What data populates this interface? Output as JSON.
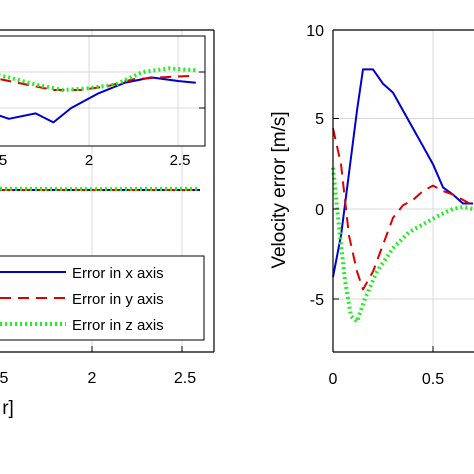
{
  "colors": {
    "x": "#0000cc",
    "y": "#dd0000",
    "z": "#22ee22",
    "grid": "#d8d8d8",
    "axis": "#000000"
  },
  "chart_data": [
    {
      "type": "line",
      "panel": "left (cropped)",
      "xlabel_visible_fragment": "r]",
      "x_ticks": [
        "5",
        "2",
        "2.5"
      ],
      "grid": true,
      "legend_placement": "bottom-right",
      "series": [
        {
          "name": "Error in x axis",
          "style": "solid"
        },
        {
          "name": "Error in y axis",
          "style": "dashed"
        },
        {
          "name": "Error in z axis",
          "style": "dotted"
        }
      ],
      "main_lines": {
        "x": [
          [
            1.1,
            0.0
          ],
          [
            2.6,
            0.0
          ]
        ],
        "y": [
          [
            1.1,
            0.0
          ],
          [
            2.6,
            0.0
          ]
        ],
        "z": [
          [
            1.1,
            0.02
          ],
          [
            1.5,
            0.03
          ],
          [
            2.0,
            0.02
          ],
          [
            2.6,
            0.03
          ]
        ]
      },
      "inset": {
        "x_ticks": [
          "5",
          "2",
          "2.5"
        ],
        "grid": true,
        "series": {
          "x": [
            [
              1.1,
              -0.1
            ],
            [
              1.25,
              -0.2
            ],
            [
              1.4,
              -0.55
            ],
            [
              1.55,
              -0.8
            ],
            [
              1.7,
              -0.65
            ],
            [
              1.8,
              -0.9
            ],
            [
              1.9,
              -0.5
            ],
            [
              2.05,
              -0.1
            ],
            [
              2.2,
              0.2
            ],
            [
              2.35,
              0.35
            ],
            [
              2.5,
              0.25
            ],
            [
              2.6,
              0.2
            ]
          ],
          "y": [
            [
              1.1,
              0.5
            ],
            [
              1.3,
              0.4
            ],
            [
              1.5,
              0.3
            ],
            [
              1.65,
              0.15
            ],
            [
              1.8,
              0.0
            ],
            [
              1.95,
              0.0
            ],
            [
              2.1,
              0.1
            ],
            [
              2.25,
              0.3
            ],
            [
              2.4,
              0.35
            ],
            [
              2.6,
              0.4
            ]
          ],
          "z": [
            [
              1.1,
              0.6
            ],
            [
              1.25,
              0.55
            ],
            [
              1.4,
              0.5
            ],
            [
              1.55,
              0.35
            ],
            [
              1.7,
              0.15
            ],
            [
              1.85,
              0.0
            ],
            [
              2.0,
              0.05
            ],
            [
              2.15,
              0.15
            ],
            [
              2.3,
              0.5
            ],
            [
              2.45,
              0.6
            ],
            [
              2.6,
              0.55
            ]
          ]
        }
      }
    },
    {
      "type": "line",
      "panel": "right",
      "xlabel": "",
      "ylabel": "Velocity error [m/s]",
      "xlim": [
        0,
        1.1
      ],
      "ylim": [
        -8,
        10
      ],
      "x_ticks": [
        "0",
        "0.5"
      ],
      "y_ticks": [
        "10",
        "5",
        "0",
        "-5"
      ],
      "grid": true,
      "series": [
        {
          "name": "Error in x axis",
          "style": "solid",
          "points": [
            [
              0,
              -3.8
            ],
            [
              0.04,
              -1.5
            ],
            [
              0.08,
              2.0
            ],
            [
              0.12,
              5.5
            ],
            [
              0.15,
              7.8
            ],
            [
              0.2,
              7.8
            ],
            [
              0.25,
              7.0
            ],
            [
              0.3,
              6.5
            ],
            [
              0.35,
              5.5
            ],
            [
              0.4,
              4.5
            ],
            [
              0.45,
              3.5
            ],
            [
              0.5,
              2.5
            ],
            [
              0.55,
              1.2
            ],
            [
              0.6,
              0.8
            ],
            [
              0.65,
              0.3
            ],
            [
              0.7,
              0.3
            ]
          ]
        },
        {
          "name": "Error in y axis",
          "style": "dashed",
          "points": [
            [
              0,
              4.5
            ],
            [
              0.04,
              2.5
            ],
            [
              0.08,
              -1.5
            ],
            [
              0.12,
              -3.5
            ],
            [
              0.15,
              -4.5
            ],
            [
              0.2,
              -3.5
            ],
            [
              0.25,
              -2.0
            ],
            [
              0.3,
              -0.5
            ],
            [
              0.35,
              0.2
            ],
            [
              0.4,
              0.5
            ],
            [
              0.45,
              1.0
            ],
            [
              0.5,
              1.3
            ],
            [
              0.55,
              1.0
            ],
            [
              0.6,
              0.8
            ],
            [
              0.65,
              0.5
            ],
            [
              0.7,
              0.2
            ]
          ]
        },
        {
          "name": "Error in z axis",
          "style": "dotted",
          "points": [
            [
              0,
              2.3
            ],
            [
              0.03,
              -1.0
            ],
            [
              0.06,
              -4.0
            ],
            [
              0.09,
              -6.0
            ],
            [
              0.12,
              -6.3
            ],
            [
              0.16,
              -5.0
            ],
            [
              0.22,
              -3.5
            ],
            [
              0.3,
              -2.2
            ],
            [
              0.38,
              -1.3
            ],
            [
              0.46,
              -0.8
            ],
            [
              0.54,
              -0.3
            ],
            [
              0.6,
              0.0
            ],
            [
              0.65,
              0.1
            ],
            [
              0.7,
              0.0
            ]
          ]
        }
      ]
    }
  ],
  "legend": {
    "x": "Error in x axis",
    "y": "Error in y axis",
    "z": "Error in z axis"
  },
  "labels": {
    "right_ylabel": "Velocity error [m/s]",
    "left_xlabel_fragment": "r]",
    "left_tick_1": "5",
    "left_tick_2": "2",
    "left_tick_3": "2.5",
    "inset_tick_1": "5",
    "inset_tick_2": "2",
    "inset_tick_3": "2.5",
    "right_ytick_10": "10",
    "right_ytick_5": "5",
    "right_ytick_0": "0",
    "right_ytick_m5": "-5",
    "right_xtick_0": "0",
    "right_xtick_05": "0.5"
  }
}
